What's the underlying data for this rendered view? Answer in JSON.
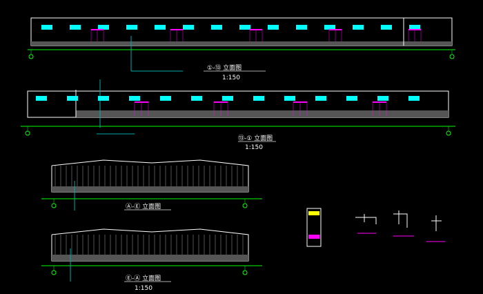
{
  "colors": {
    "background": "#000000",
    "outline": "#ffffff",
    "window": "#00ffff",
    "door": "#ff00ff",
    "grid": "#00ff00",
    "leader": "#00a0a0",
    "ground": "#808080"
  },
  "drawings": [
    {
      "title": "①-⑬ 立面图",
      "scale": "1:150",
      "windows": 14,
      "doors": 5
    },
    {
      "title": "⑬-① 立面图",
      "scale": "1:150",
      "windows": 13,
      "doors": 4
    },
    {
      "title": "Ⓐ-Ⓔ 立面图",
      "scale": ""
    },
    {
      "title": "Ⓔ-Ⓐ 立面图",
      "scale": "1:150"
    }
  ]
}
